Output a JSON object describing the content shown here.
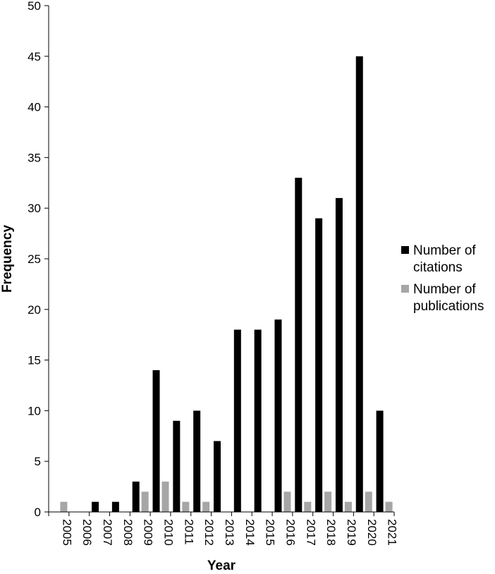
{
  "chart_data": {
    "type": "bar",
    "title": "",
    "xlabel": "Year",
    "ylabel": "Frequency",
    "ylim": [
      0,
      50
    ],
    "yticks": [
      0,
      5,
      10,
      15,
      20,
      25,
      30,
      35,
      40,
      45,
      50
    ],
    "grid": false,
    "legend_position": "right",
    "categories": [
      "2005",
      "2006",
      "2007",
      "2008",
      "2009",
      "2010",
      "2011",
      "2012",
      "2013",
      "2014",
      "2015",
      "2016",
      "2017",
      "2018",
      "2019",
      "2020",
      "2021"
    ],
    "series": [
      {
        "name_lines": [
          "Number of",
          "citations"
        ],
        "color": "#000000",
        "values": [
          0,
          0,
          1,
          1,
          3,
          14,
          9,
          10,
          7,
          18,
          18,
          19,
          33,
          29,
          31,
          45,
          10
        ]
      },
      {
        "name_lines": [
          "Number of",
          "publications"
        ],
        "color": "#a6a6a6",
        "values": [
          1,
          0,
          0,
          0,
          2,
          3,
          1,
          1,
          0,
          0,
          0,
          2,
          1,
          2,
          1,
          2,
          1
        ]
      }
    ]
  }
}
